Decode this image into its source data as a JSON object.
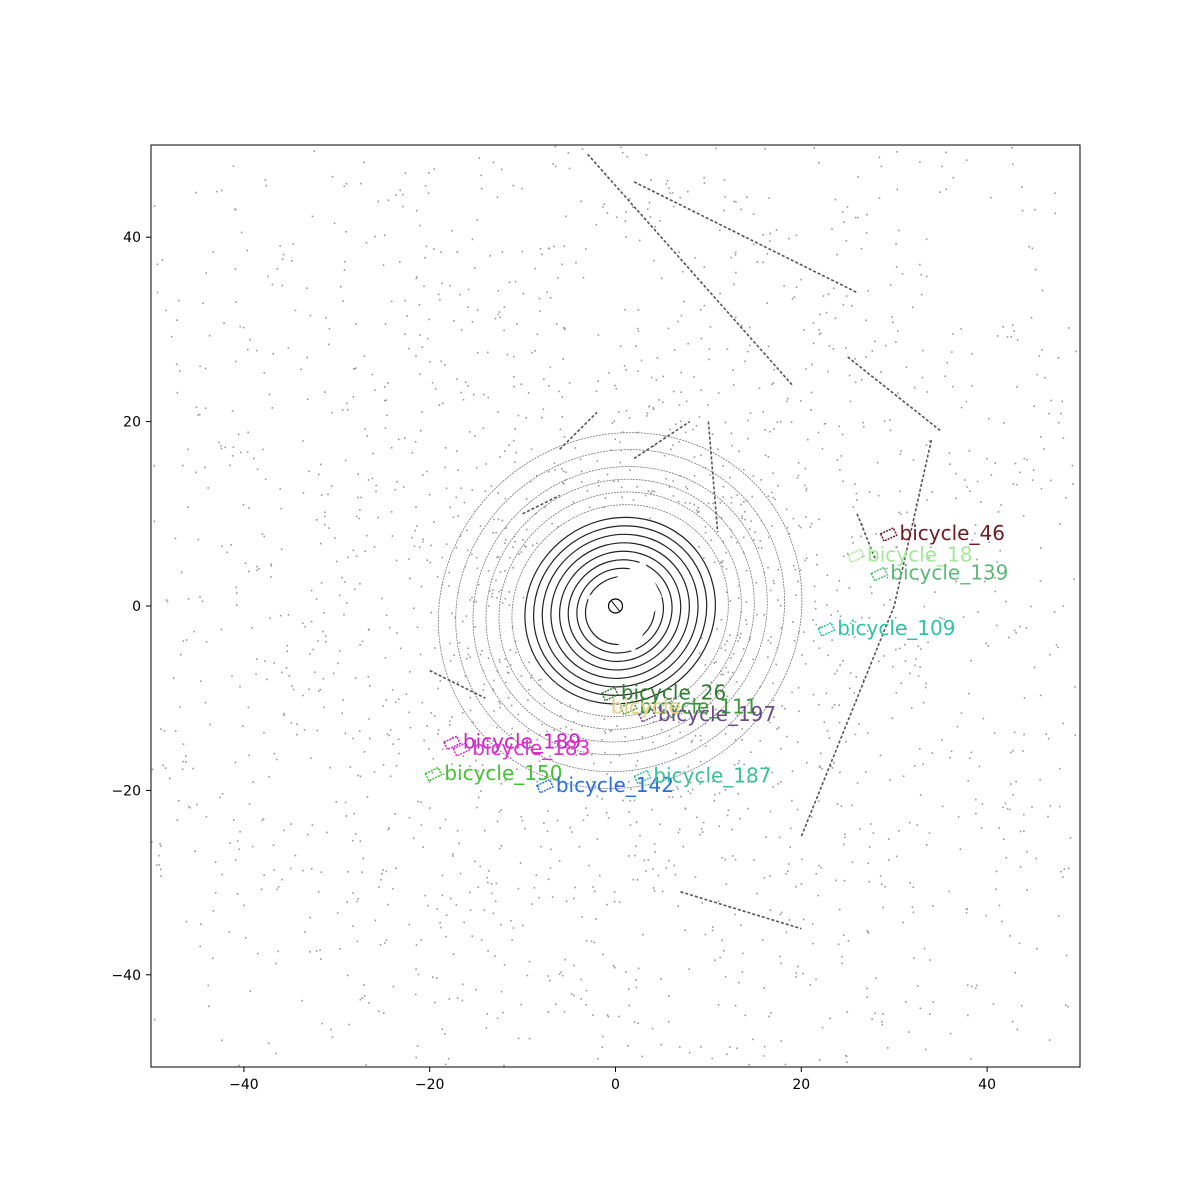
{
  "chart_data": {
    "type": "scatter",
    "title": "",
    "xlabel": "",
    "ylabel": "",
    "xlim": [
      -50,
      50
    ],
    "ylim": [
      -50,
      50
    ],
    "xticks": [
      -40,
      -20,
      0,
      20,
      40
    ],
    "yticks": [
      -40,
      -20,
      0,
      20,
      40
    ],
    "xtick_labels": [
      "−40",
      "−20",
      "0",
      "20",
      "40"
    ],
    "ytick_labels": [
      "−40",
      "−20",
      "0",
      "20",
      "40"
    ],
    "grid": false,
    "background_points": "lidar scan (gray)",
    "ego": {
      "x": 0,
      "y": 0,
      "marker": "circle"
    },
    "series": [
      {
        "name": "bicycle_46",
        "x": 29.5,
        "y": 7.8,
        "color": "#6b1d22"
      },
      {
        "name": "bicycle_18",
        "x": 26.0,
        "y": 5.5,
        "color": "#a6e89a"
      },
      {
        "name": "bicycle_139",
        "x": 28.5,
        "y": 3.5,
        "color": "#5db87a"
      },
      {
        "name": "bicycle_109",
        "x": 22.8,
        "y": -2.5,
        "color": "#2ec4a6"
      },
      {
        "name": "bicycle_26",
        "x": -0.5,
        "y": -9.5,
        "color": "#2f7d32"
      },
      {
        "name": "bicycle_111",
        "x": 1.5,
        "y": -11.0,
        "color": "#3c9c3a"
      },
      {
        "name": "bicycle_197",
        "x": 3.5,
        "y": -11.8,
        "color": "#6b4a8a"
      },
      {
        "name": "bicycle_189",
        "x": -17.5,
        "y": -14.8,
        "color": "#cc22c8"
      },
      {
        "name": "bicycle_183",
        "x": -16.5,
        "y": -15.5,
        "color": "#dd33cc"
      },
      {
        "name": "bicycle_150",
        "x": -19.5,
        "y": -18.2,
        "color": "#44c236"
      },
      {
        "name": "bicycle_142",
        "x": -7.5,
        "y": -19.5,
        "color": "#2a6fe0"
      },
      {
        "name": "bicycle_187",
        "x": 3.0,
        "y": -18.5,
        "color": "#3cc096"
      }
    ],
    "faint_label": {
      "text": "bicycle",
      "x": -0.5,
      "y": -11.0,
      "color": "#e8d08a"
    }
  }
}
